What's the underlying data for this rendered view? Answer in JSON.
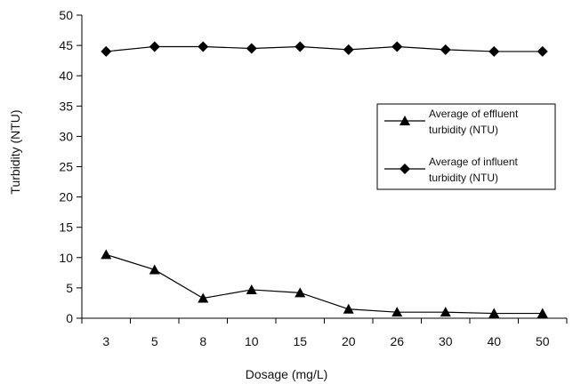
{
  "chart_data": {
    "type": "line",
    "title": "",
    "xlabel": "Dosage (mg/L)",
    "ylabel": "Turbidity (NTU)",
    "categories": [
      "3",
      "5",
      "8",
      "10",
      "15",
      "20",
      "26",
      "30",
      "40",
      "50"
    ],
    "ylim": [
      0,
      50
    ],
    "yticks": [
      0,
      5,
      10,
      15,
      20,
      25,
      30,
      35,
      40,
      45,
      50
    ],
    "grid": false,
    "legend_position": "right",
    "series": [
      {
        "name": "Average of effluent turbidity (NTU)",
        "legend_lines": [
          "Average of effluent",
          "turbidity (NTU)"
        ],
        "marker": "triangle",
        "color": "#000000",
        "values": [
          10.5,
          8.0,
          3.3,
          4.7,
          4.2,
          1.5,
          1.0,
          1.0,
          0.8,
          0.8
        ]
      },
      {
        "name": "Average of influent turbidity (NTU)",
        "legend_lines": [
          "Average of influent",
          "turbidity (NTU)"
        ],
        "marker": "diamond",
        "color": "#000000",
        "values": [
          44.0,
          44.8,
          44.8,
          44.5,
          44.8,
          44.3,
          44.8,
          44.3,
          44.0,
          44.0
        ]
      }
    ]
  }
}
